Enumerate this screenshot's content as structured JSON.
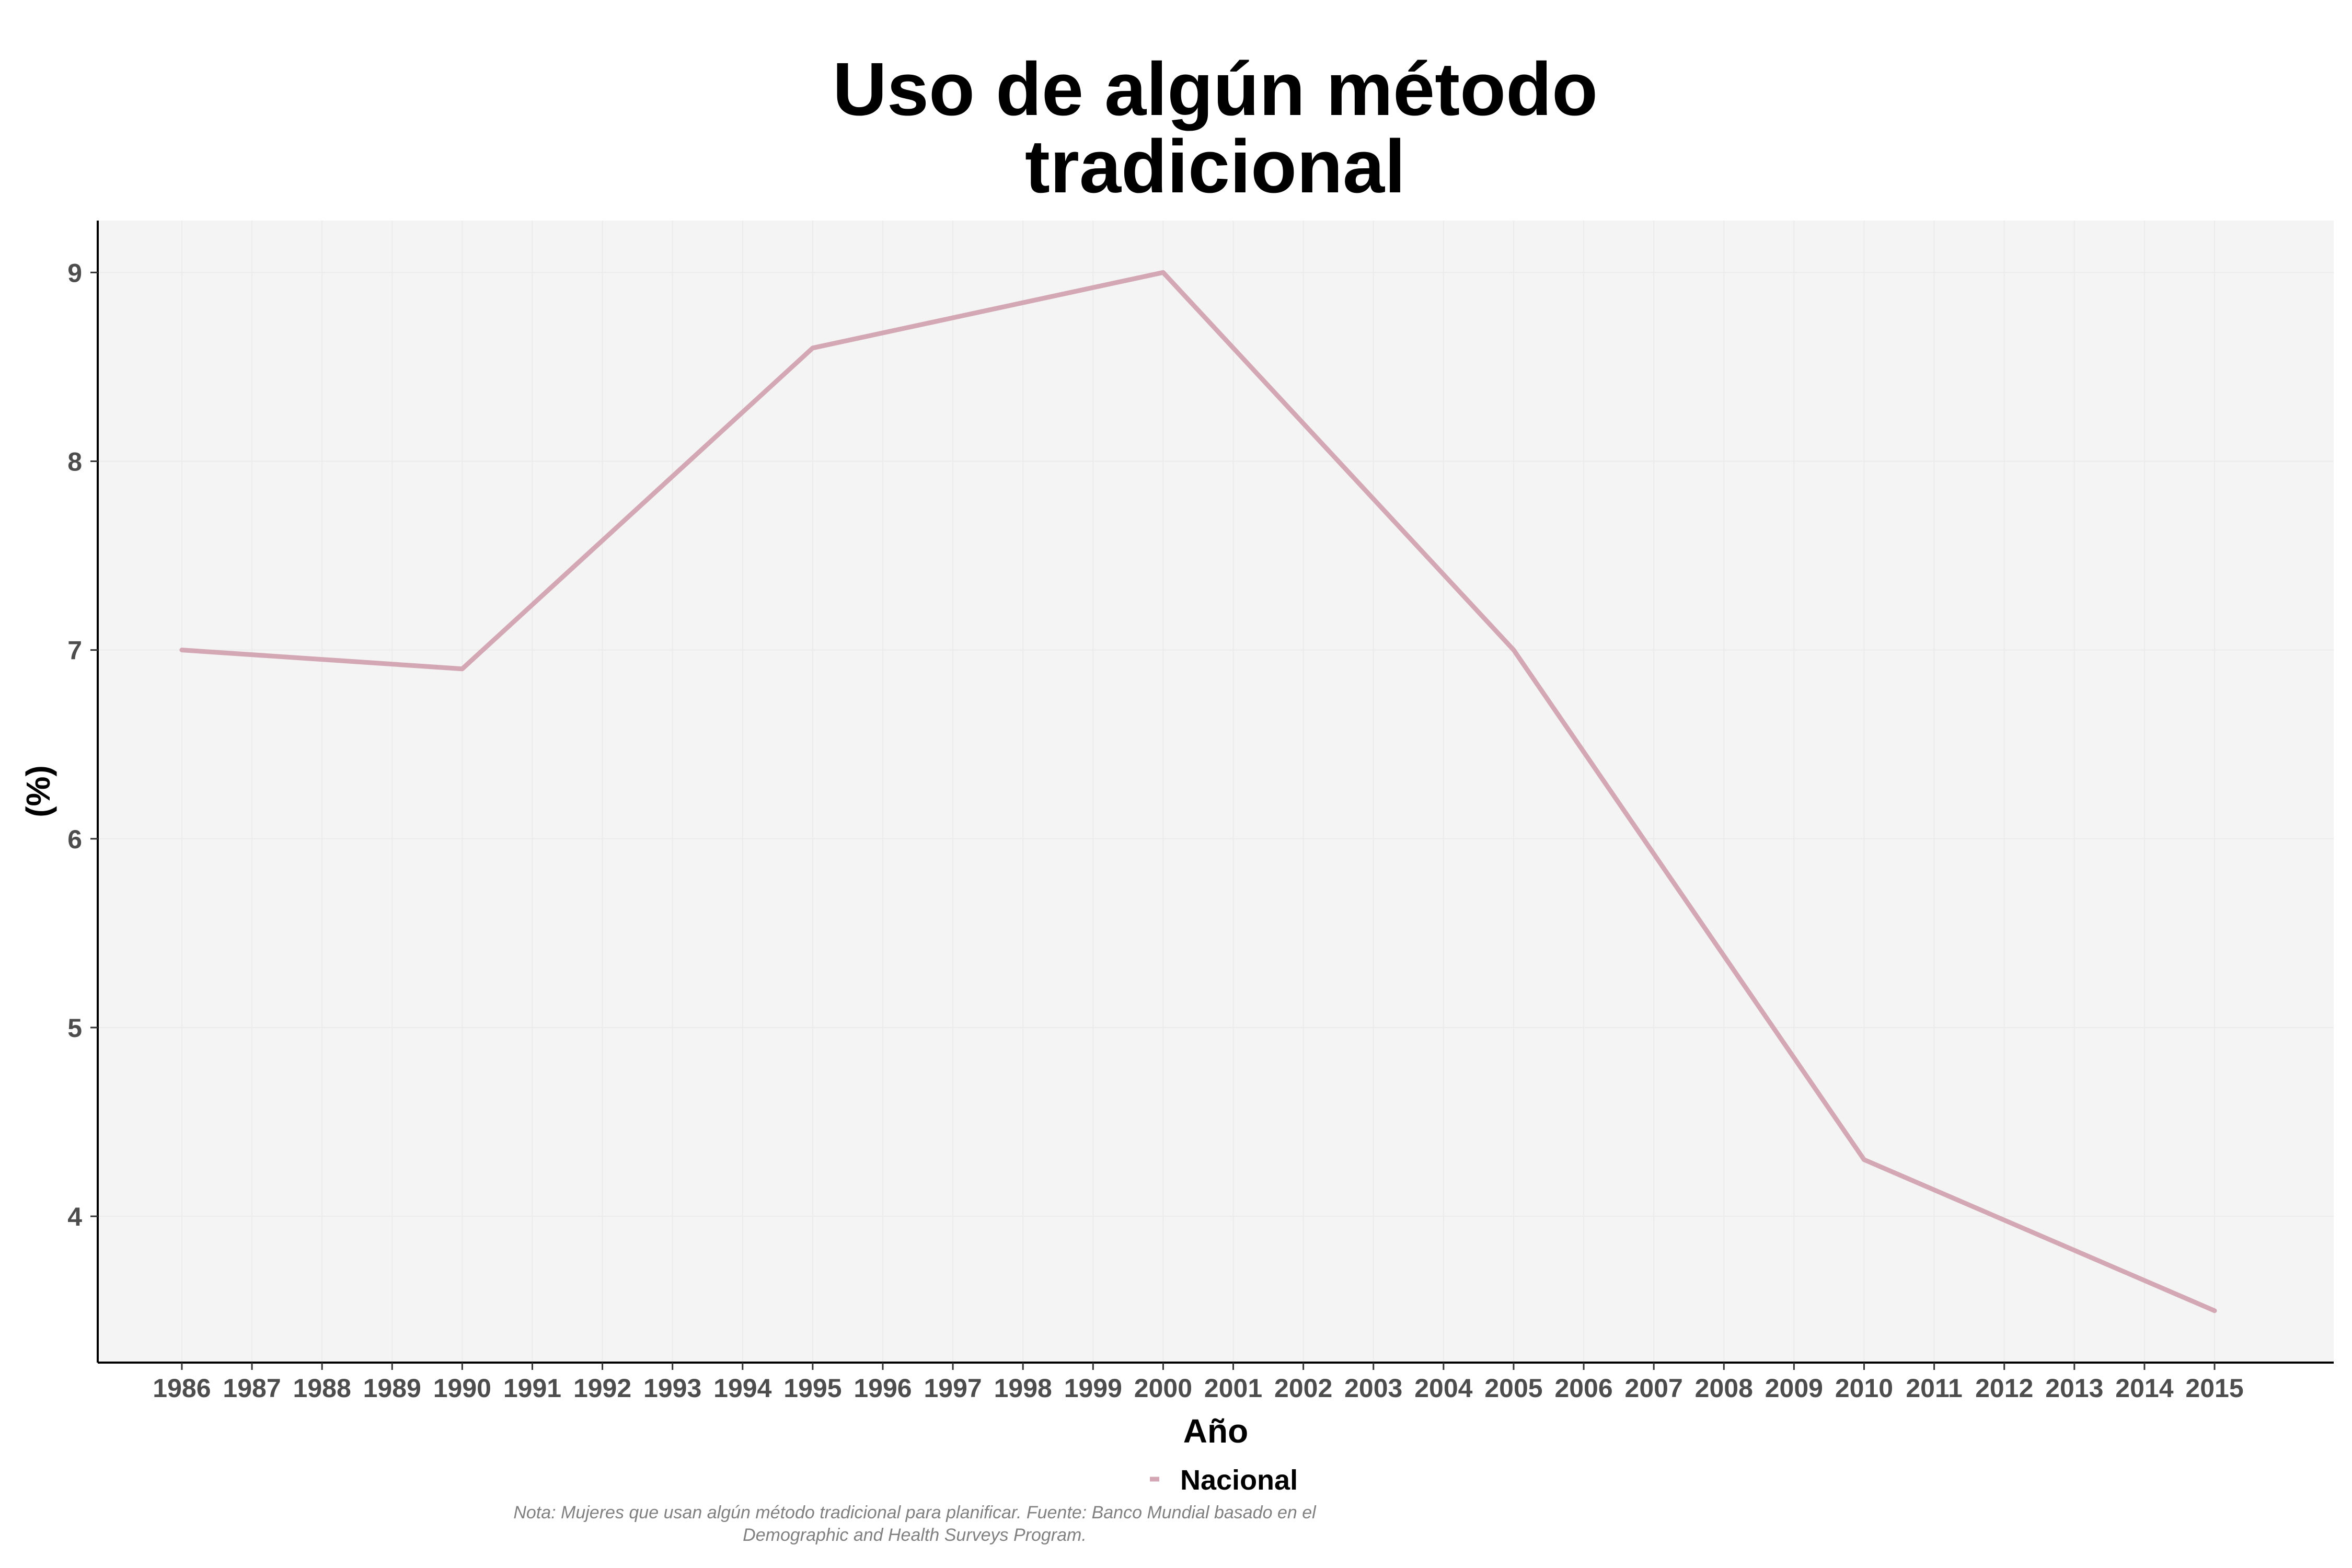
{
  "chart_data": {
    "type": "line",
    "title_lines": [
      "Uso de algún método",
      "tradicional"
    ],
    "xlabel": "Año",
    "ylabel": "(%)",
    "x_ticks": [
      "1986",
      "1987",
      "1988",
      "1989",
      "1990",
      "1991",
      "1992",
      "1993",
      "1994",
      "1995",
      "1996",
      "1997",
      "1998",
      "1999",
      "2000",
      "2001",
      "2002",
      "2003",
      "2004",
      "2005",
      "2006",
      "2007",
      "2008",
      "2009",
      "2010",
      "2011",
      "2012",
      "2013",
      "2014",
      "2015"
    ],
    "y_ticks": [
      "4",
      "5",
      "6",
      "7",
      "8",
      "9"
    ],
    "xlim": [
      1984.8,
      2016.7
    ],
    "ylim": [
      3.225,
      9.275
    ],
    "grid": true,
    "legend_position": "bottom",
    "series": [
      {
        "name": "Nacional",
        "color": "#d4a7b5",
        "x": [
          1986,
          1990,
          1995,
          2000,
          2005,
          2010,
          2015
        ],
        "y": [
          7.0,
          6.9,
          8.6,
          9.0,
          7.0,
          4.3,
          3.5
        ]
      }
    ],
    "note_lines": [
      "Nota: Mujeres que usan algún método tradicional para planificar. Fuente: Banco Mundial basado en el",
      "Demographic and Health Surveys Program."
    ],
    "colors": {
      "panel_background": "#f4f4f4",
      "grid": "#ebebeb",
      "axis": "#000000"
    }
  }
}
